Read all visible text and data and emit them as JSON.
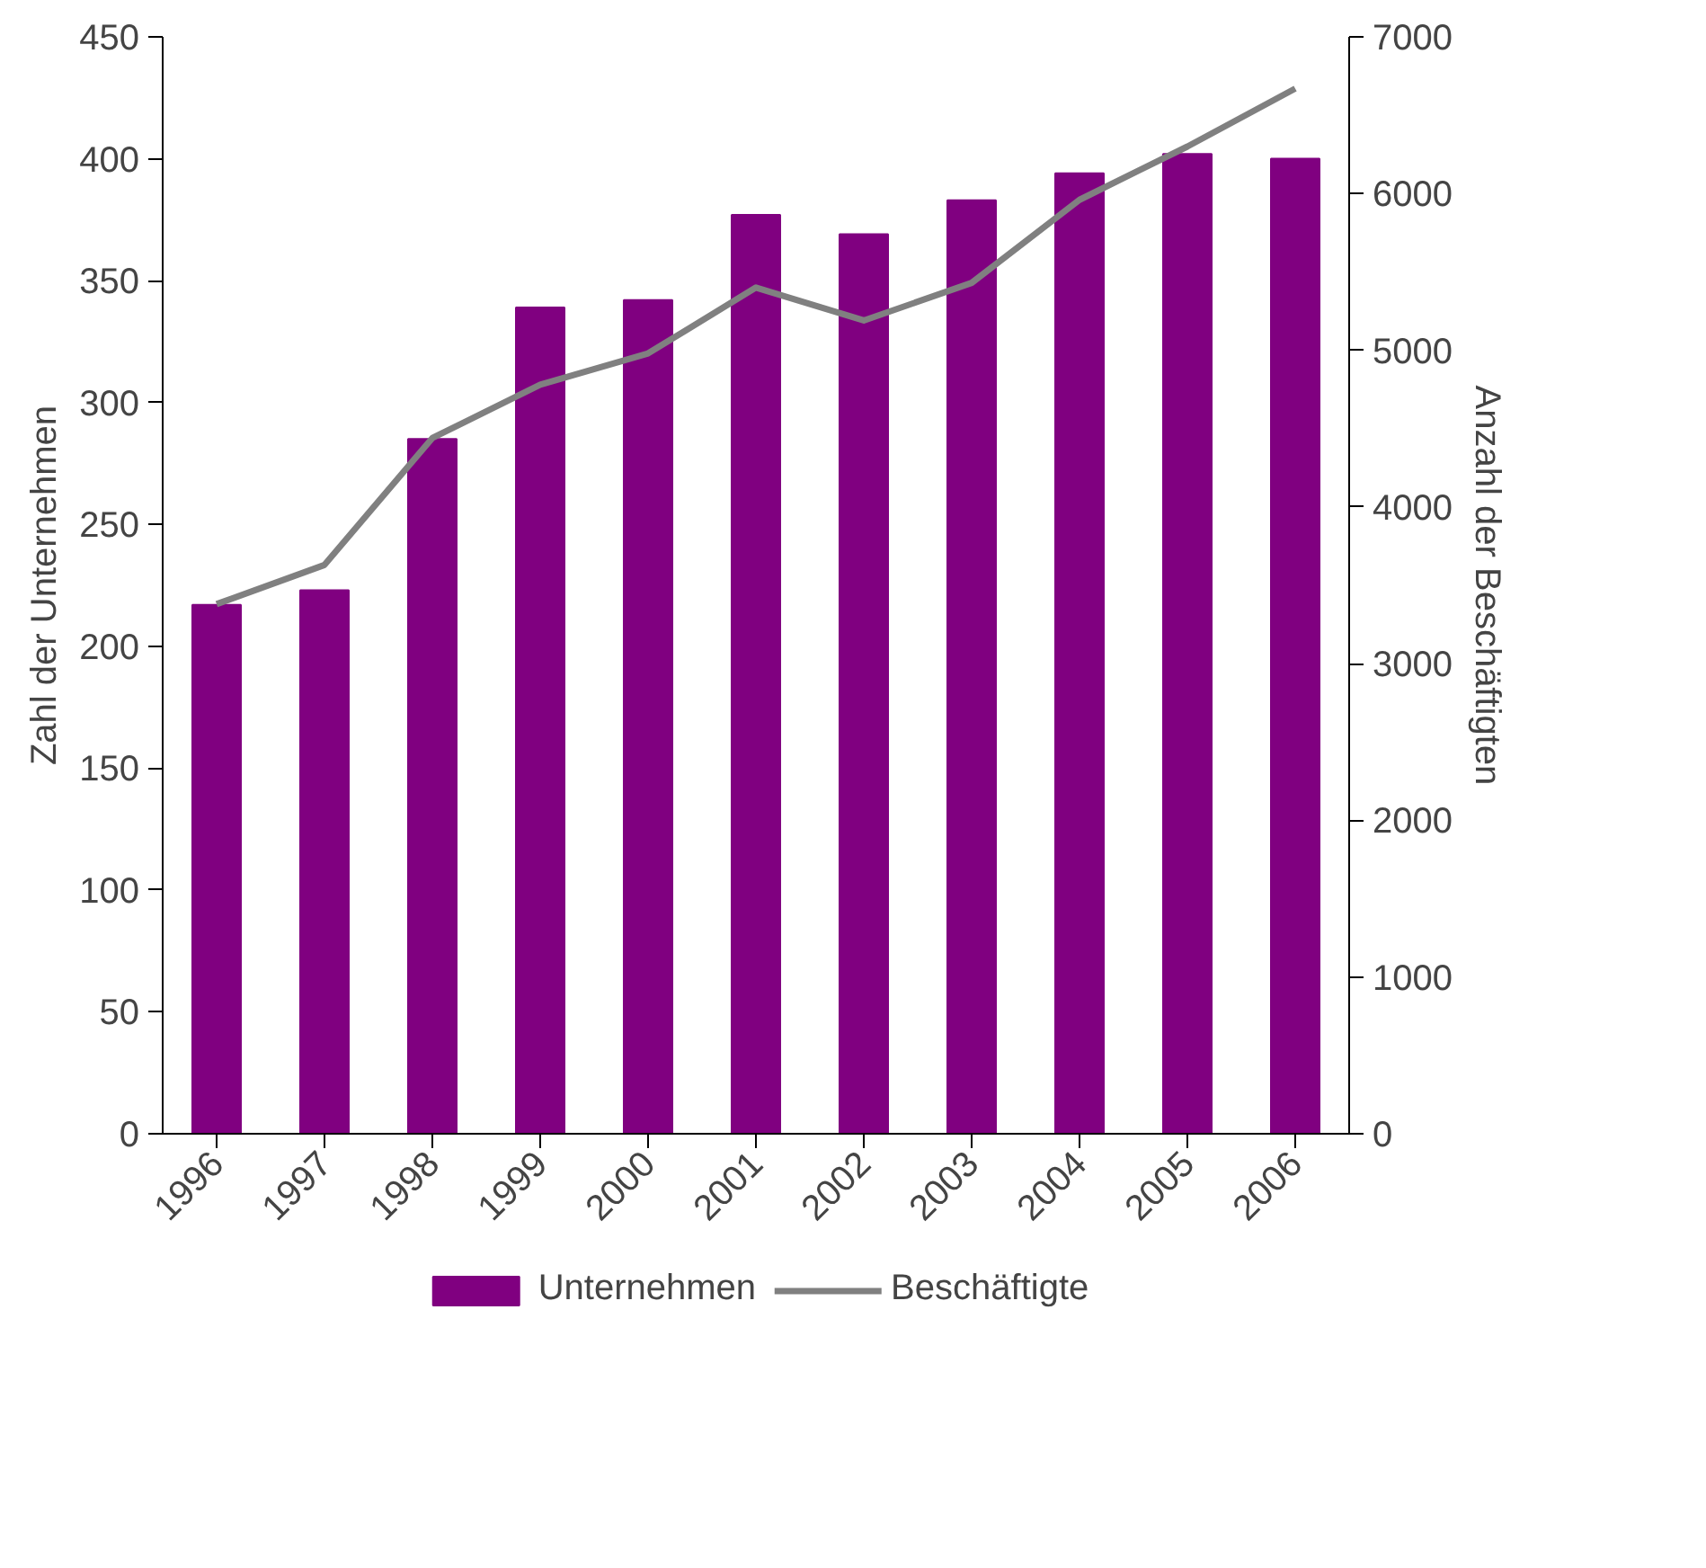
{
  "chart_data": {
    "type": "bar",
    "categories": [
      "1996",
      "1997",
      "1998",
      "1999",
      "2000",
      "2001",
      "2002",
      "2003",
      "2004",
      "2005",
      "2006"
    ],
    "ylabel": "Zahl der Unternehmen",
    "y2label": "Anzahl der Beschäftigten",
    "ylim": [
      0,
      450
    ],
    "yticks": [
      0,
      50,
      100,
      150,
      200,
      250,
      300,
      350,
      400,
      450
    ],
    "y2lim": [
      0,
      7000
    ],
    "y2ticks": [
      0,
      1000,
      2000,
      3000,
      4000,
      5000,
      6000,
      7000
    ],
    "grid": false,
    "legend": "bottom",
    "series": [
      {
        "name": "Unternehmen",
        "color": "#800080",
        "values": [
          217,
          223,
          285,
          339,
          342,
          377,
          369,
          383,
          394,
          402,
          400
        ]
      },
      {
        "name": "Beschäftigte",
        "type": "line",
        "axis": "y2",
        "color": "#808080",
        "values": [
          3380,
          3630,
          4440,
          4780,
          4980,
          5400,
          5190,
          5430,
          5960,
          6300,
          6670
        ]
      }
    ]
  }
}
